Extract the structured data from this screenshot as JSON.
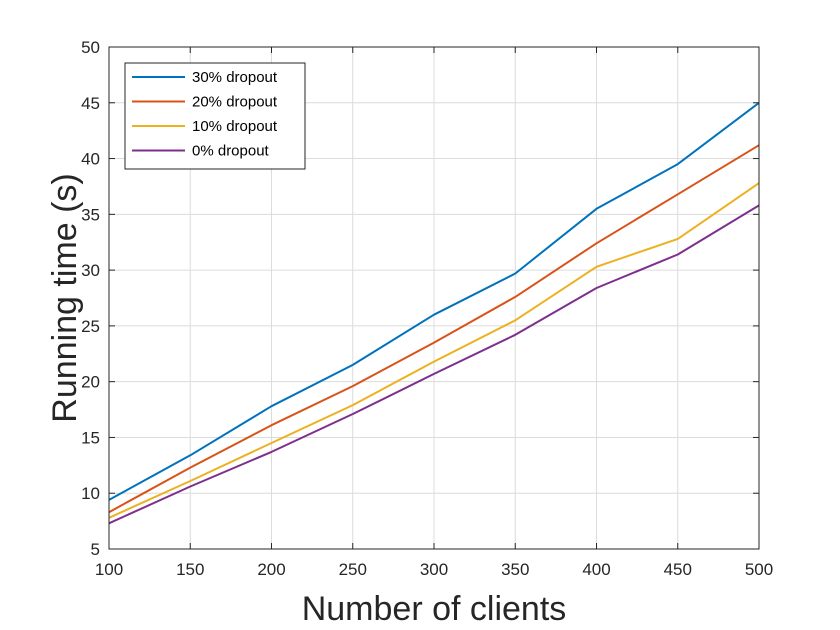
{
  "chart_data": {
    "type": "line",
    "xlabel": "Number of clients",
    "ylabel": "Running time (s)",
    "xlim": [
      100,
      500
    ],
    "ylim": [
      5,
      50
    ],
    "xticks": [
      "100",
      "150",
      "200",
      "250",
      "300",
      "350",
      "400",
      "450",
      "500"
    ],
    "yticks": [
      "5",
      "10",
      "15",
      "20",
      "25",
      "30",
      "35",
      "40",
      "45",
      "50"
    ],
    "grid": true,
    "legend_position": "top-left",
    "x": [
      100,
      150,
      200,
      250,
      300,
      350,
      400,
      450,
      500
    ],
    "series": [
      {
        "name": "30% dropout",
        "color": "#0072BD",
        "values": [
          9.4,
          13.4,
          17.8,
          21.5,
          26.0,
          29.7,
          35.5,
          39.5,
          45.0
        ]
      },
      {
        "name": "20% dropout",
        "color": "#D95319",
        "values": [
          8.3,
          12.3,
          16.1,
          19.6,
          23.5,
          27.6,
          32.4,
          36.8,
          41.2
        ]
      },
      {
        "name": "10% dropout",
        "color": "#EDB120",
        "values": [
          7.8,
          11.1,
          14.5,
          17.9,
          21.8,
          25.5,
          30.3,
          32.8,
          37.8
        ]
      },
      {
        "name": "0% dropout",
        "color": "#7E2F8E",
        "values": [
          7.3,
          10.6,
          13.7,
          17.1,
          20.7,
          24.2,
          28.4,
          31.4,
          35.8
        ]
      }
    ]
  }
}
